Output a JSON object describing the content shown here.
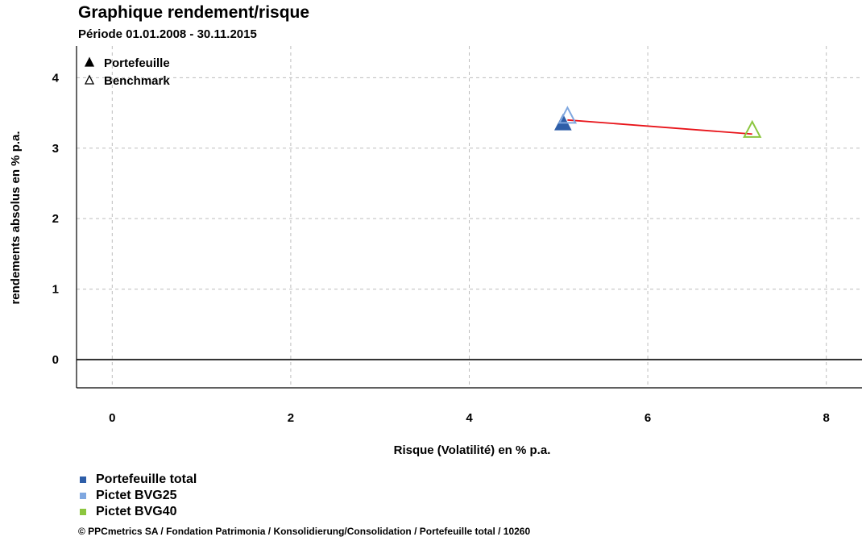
{
  "title": "Graphique rendement/risque",
  "subtitle": "Période 01.01.2008 - 30.11.2015",
  "footer": "© PPCmetrics SA / Fondation Patrimonia / Konsolidierung/Consolidation / Portefeuille total / 10260",
  "chart_data": {
    "type": "scatter",
    "xlabel": "Risque (Volatilité) en % p.a.",
    "ylabel": "rendements absolus en % p.a.",
    "xlim": [
      -0.4,
      8.4
    ],
    "ylim": [
      -0.4,
      4.45
    ],
    "xticks": [
      0,
      2,
      4,
      6,
      8
    ],
    "yticks": [
      0,
      1,
      2,
      3,
      4
    ],
    "grid": true,
    "marker_legend": [
      {
        "label": "Portefeuille",
        "marker": "filled-triangle"
      },
      {
        "label": "Benchmark",
        "marker": "open-triangle"
      }
    ],
    "series": [
      {
        "name": "Portefeuille total",
        "color": "#2e5ea8",
        "marker": "filled-triangle",
        "x": 5.05,
        "y": 3.35
      },
      {
        "name": "Pictet BVG25",
        "color": "#7fa7e0",
        "marker": "open-triangle",
        "x": 5.1,
        "y": 3.45
      },
      {
        "name": "Pictet BVG40",
        "color": "#8cc63f",
        "marker": "open-triangle",
        "x": 7.17,
        "y": 3.25
      }
    ],
    "connector": {
      "color": "#e8141a",
      "from": [
        5.1,
        3.4
      ],
      "to": [
        7.17,
        3.2
      ]
    },
    "zero_line": 0
  }
}
